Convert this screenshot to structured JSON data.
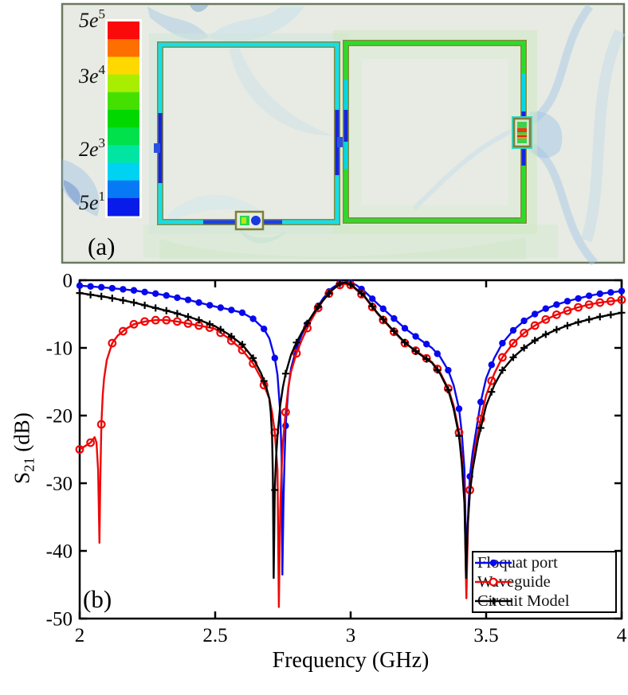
{
  "panel_a": {
    "label": "(a)",
    "background_color": "#e7ebe3",
    "border_color": "#6a7a61",
    "colorbar": {
      "labels": [
        "5e5",
        "3e4",
        "2e3",
        "5e1"
      ],
      "colors_top_to_bottom": [
        "#fa0a0a",
        "#fd7000",
        "#ffd800",
        "#a9ee00",
        "#45e000",
        "#00d800",
        "#00e14b",
        "#00e6a2",
        "#00d2f2",
        "#0779f5",
        "#081be8"
      ]
    },
    "left_ring_color": "#12dfe8",
    "right_ring_color": "#2bdc2b",
    "ring_edge_color": "#8a8a3c",
    "hotspot_blue": "#1326df",
    "port_bar_red": "#e83c10",
    "port_bar_orange": "#ff8c1a"
  },
  "panel_b": {
    "label": "(b)",
    "x_label": "Frequency (GHz)",
    "y_label_main": "S",
    "y_label_sub": "21",
    "y_label_rest": " (dB)"
  },
  "chart_data": {
    "type": "line",
    "title": "",
    "xlabel": "Frequency (GHz)",
    "ylabel": "S21 (dB)",
    "xlim": [
      2,
      4
    ],
    "ylim": [
      -50,
      0
    ],
    "x_ticks": [
      2,
      2.5,
      3,
      3.5,
      4
    ],
    "y_ticks": [
      0,
      -10,
      -20,
      -30,
      -40,
      -50
    ],
    "grid": false,
    "legend_position": "lower-right",
    "marker_stride_ghz": 0.04,
    "marker_min_db": -31,
    "series": [
      {
        "name": "Floquat port",
        "color": "#0808ee",
        "marker": "filled-circle",
        "points": [
          [
            2.0,
            -0.8
          ],
          [
            2.05,
            -0.95
          ],
          [
            2.1,
            -1.1
          ],
          [
            2.15,
            -1.3
          ],
          [
            2.2,
            -1.5
          ],
          [
            2.25,
            -1.8
          ],
          [
            2.3,
            -2.1
          ],
          [
            2.35,
            -2.5
          ],
          [
            2.4,
            -2.9
          ],
          [
            2.45,
            -3.4
          ],
          [
            2.5,
            -3.9
          ],
          [
            2.55,
            -4.3
          ],
          [
            2.6,
            -4.8
          ],
          [
            2.64,
            -5.7
          ],
          [
            2.68,
            -7.2
          ],
          [
            2.7,
            -8.6
          ],
          [
            2.72,
            -11.5
          ],
          [
            2.73,
            -14
          ],
          [
            2.74,
            -19.5
          ],
          [
            2.745,
            -26
          ],
          [
            2.748,
            -43.5
          ],
          [
            2.752,
            -33
          ],
          [
            2.756,
            -26.5
          ],
          [
            2.76,
            -21.5
          ],
          [
            2.77,
            -16
          ],
          [
            2.78,
            -13
          ],
          [
            2.8,
            -10
          ],
          [
            2.82,
            -8
          ],
          [
            2.85,
            -5.7
          ],
          [
            2.88,
            -3.8
          ],
          [
            2.9,
            -2.6
          ],
          [
            2.93,
            -1.2
          ],
          [
            2.96,
            -0.4
          ],
          [
            2.99,
            -0.25
          ],
          [
            3.02,
            -0.7
          ],
          [
            3.05,
            -1.6
          ],
          [
            3.1,
            -3.5
          ],
          [
            3.15,
            -5.3
          ],
          [
            3.2,
            -7.1
          ],
          [
            3.25,
            -8.6
          ],
          [
            3.3,
            -10
          ],
          [
            3.33,
            -11.3
          ],
          [
            3.36,
            -13.3
          ],
          [
            3.38,
            -15.5
          ],
          [
            3.4,
            -19
          ],
          [
            3.41,
            -22.5
          ],
          [
            3.42,
            -28
          ],
          [
            3.428,
            -43.5
          ],
          [
            3.434,
            -34
          ],
          [
            3.44,
            -29
          ],
          [
            3.45,
            -25.5
          ],
          [
            3.46,
            -23
          ],
          [
            3.48,
            -18
          ],
          [
            3.5,
            -14.5
          ],
          [
            3.53,
            -11.5
          ],
          [
            3.56,
            -9.3
          ],
          [
            3.6,
            -7.4
          ],
          [
            3.64,
            -6.0
          ],
          [
            3.68,
            -5.0
          ],
          [
            3.72,
            -4.2
          ],
          [
            3.76,
            -3.6
          ],
          [
            3.8,
            -3.1
          ],
          [
            3.84,
            -2.7
          ],
          [
            3.88,
            -2.3
          ],
          [
            3.92,
            -2.0
          ],
          [
            3.96,
            -1.8
          ],
          [
            4.0,
            -1.6
          ]
        ]
      },
      {
        "name": "Waveguide",
        "color": "#ee0808",
        "marker": "open-circle",
        "points": [
          [
            2.0,
            -25
          ],
          [
            2.02,
            -24.5
          ],
          [
            2.04,
            -24
          ],
          [
            2.055,
            -23.2
          ],
          [
            2.062,
            -24
          ],
          [
            2.068,
            -28
          ],
          [
            2.073,
            -38.8
          ],
          [
            2.076,
            -30
          ],
          [
            2.08,
            -21.3
          ],
          [
            2.085,
            -17
          ],
          [
            2.09,
            -14.5
          ],
          [
            2.1,
            -11.8
          ],
          [
            2.12,
            -9.3
          ],
          [
            2.14,
            -8.2
          ],
          [
            2.17,
            -7.2
          ],
          [
            2.2,
            -6.5
          ],
          [
            2.24,
            -6.1
          ],
          [
            2.28,
            -5.9
          ],
          [
            2.32,
            -5.9
          ],
          [
            2.36,
            -6.1
          ],
          [
            2.4,
            -6.4
          ],
          [
            2.44,
            -6.7
          ],
          [
            2.48,
            -7.0
          ],
          [
            2.5,
            -7.2
          ],
          [
            2.55,
            -8.6
          ],
          [
            2.6,
            -10.3
          ],
          [
            2.64,
            -12.3
          ],
          [
            2.67,
            -14.5
          ],
          [
            2.7,
            -17.5
          ],
          [
            2.71,
            -19.5
          ],
          [
            2.72,
            -22.5
          ],
          [
            2.73,
            -28
          ],
          [
            2.735,
            -48.3
          ],
          [
            2.74,
            -34
          ],
          [
            2.745,
            -28
          ],
          [
            2.75,
            -24
          ],
          [
            2.76,
            -19.5
          ],
          [
            2.77,
            -15.8
          ],
          [
            2.78,
            -13.5
          ],
          [
            2.8,
            -10.8
          ],
          [
            2.82,
            -8.8
          ],
          [
            2.85,
            -6.2
          ],
          [
            2.88,
            -4.1
          ],
          [
            2.9,
            -2.9
          ],
          [
            2.93,
            -1.5
          ],
          [
            2.95,
            -0.9
          ],
          [
            2.97,
            -0.5
          ],
          [
            3.0,
            -0.7
          ],
          [
            3.05,
            -2.4
          ],
          [
            3.1,
            -5.0
          ],
          [
            3.15,
            -7.2
          ],
          [
            3.2,
            -9.3
          ],
          [
            3.25,
            -10.7
          ],
          [
            3.3,
            -12.1
          ],
          [
            3.33,
            -13.6
          ],
          [
            3.36,
            -16
          ],
          [
            3.38,
            -18.5
          ],
          [
            3.4,
            -22.5
          ],
          [
            3.41,
            -26
          ],
          [
            3.42,
            -32
          ],
          [
            3.427,
            -47
          ],
          [
            3.433,
            -36
          ],
          [
            3.44,
            -31
          ],
          [
            3.45,
            -27.5
          ],
          [
            3.46,
            -24.5
          ],
          [
            3.48,
            -20.5
          ],
          [
            3.5,
            -17
          ],
          [
            3.53,
            -13.8
          ],
          [
            3.56,
            -11.4
          ],
          [
            3.6,
            -9.3
          ],
          [
            3.64,
            -7.8
          ],
          [
            3.68,
            -6.7
          ],
          [
            3.72,
            -5.8
          ],
          [
            3.76,
            -5.1
          ],
          [
            3.8,
            -4.5
          ],
          [
            3.84,
            -4.0
          ],
          [
            3.88,
            -3.6
          ],
          [
            3.92,
            -3.3
          ],
          [
            3.96,
            -3.1
          ],
          [
            4.0,
            -2.9
          ]
        ]
      },
      {
        "name": "Circuit Model",
        "color": "#000000",
        "marker": "plus",
        "points": [
          [
            2.0,
            -1.9
          ],
          [
            2.05,
            -2.2
          ],
          [
            2.1,
            -2.5
          ],
          [
            2.15,
            -2.9
          ],
          [
            2.2,
            -3.3
          ],
          [
            2.25,
            -3.8
          ],
          [
            2.3,
            -4.3
          ],
          [
            2.35,
            -4.8
          ],
          [
            2.4,
            -5.4
          ],
          [
            2.45,
            -6.0
          ],
          [
            2.5,
            -6.8
          ],
          [
            2.55,
            -8.0
          ],
          [
            2.6,
            -9.5
          ],
          [
            2.64,
            -11.5
          ],
          [
            2.67,
            -13.8
          ],
          [
            2.69,
            -16
          ],
          [
            2.7,
            -17.5
          ],
          [
            2.705,
            -19.5
          ],
          [
            2.71,
            -23
          ],
          [
            2.713,
            -29
          ],
          [
            2.716,
            -44
          ],
          [
            2.72,
            -31
          ],
          [
            2.725,
            -26
          ],
          [
            2.73,
            -23
          ],
          [
            2.74,
            -18.5
          ],
          [
            2.75,
            -15.8
          ],
          [
            2.76,
            -13.8
          ],
          [
            2.78,
            -11
          ],
          [
            2.8,
            -9.2
          ],
          [
            2.82,
            -7.7
          ],
          [
            2.85,
            -5.7
          ],
          [
            2.88,
            -3.9
          ],
          [
            2.9,
            -2.9
          ],
          [
            2.93,
            -1.5
          ],
          [
            2.96,
            -0.5
          ],
          [
            2.98,
            -0.35
          ],
          [
            3.0,
            -0.6
          ],
          [
            3.05,
            -2.3
          ],
          [
            3.1,
            -4.9
          ],
          [
            3.15,
            -7.1
          ],
          [
            3.2,
            -9.2
          ],
          [
            3.25,
            -10.8
          ],
          [
            3.3,
            -12.2
          ],
          [
            3.33,
            -13.8
          ],
          [
            3.36,
            -16.2
          ],
          [
            3.38,
            -19
          ],
          [
            3.4,
            -23
          ],
          [
            3.41,
            -27
          ],
          [
            3.42,
            -33
          ],
          [
            3.426,
            -44
          ],
          [
            3.432,
            -36
          ],
          [
            3.44,
            -31.5
          ],
          [
            3.45,
            -28
          ],
          [
            3.47,
            -23.5
          ],
          [
            3.5,
            -18.5
          ],
          [
            3.53,
            -15.5
          ],
          [
            3.56,
            -13.3
          ],
          [
            3.6,
            -11.4
          ],
          [
            3.64,
            -10
          ],
          [
            3.68,
            -8.9
          ],
          [
            3.72,
            -8.0
          ],
          [
            3.76,
            -7.3
          ],
          [
            3.8,
            -6.7
          ],
          [
            3.84,
            -6.2
          ],
          [
            3.88,
            -5.8
          ],
          [
            3.92,
            -5.4
          ],
          [
            3.96,
            -5.1
          ],
          [
            4.0,
            -4.8
          ]
        ]
      }
    ]
  }
}
